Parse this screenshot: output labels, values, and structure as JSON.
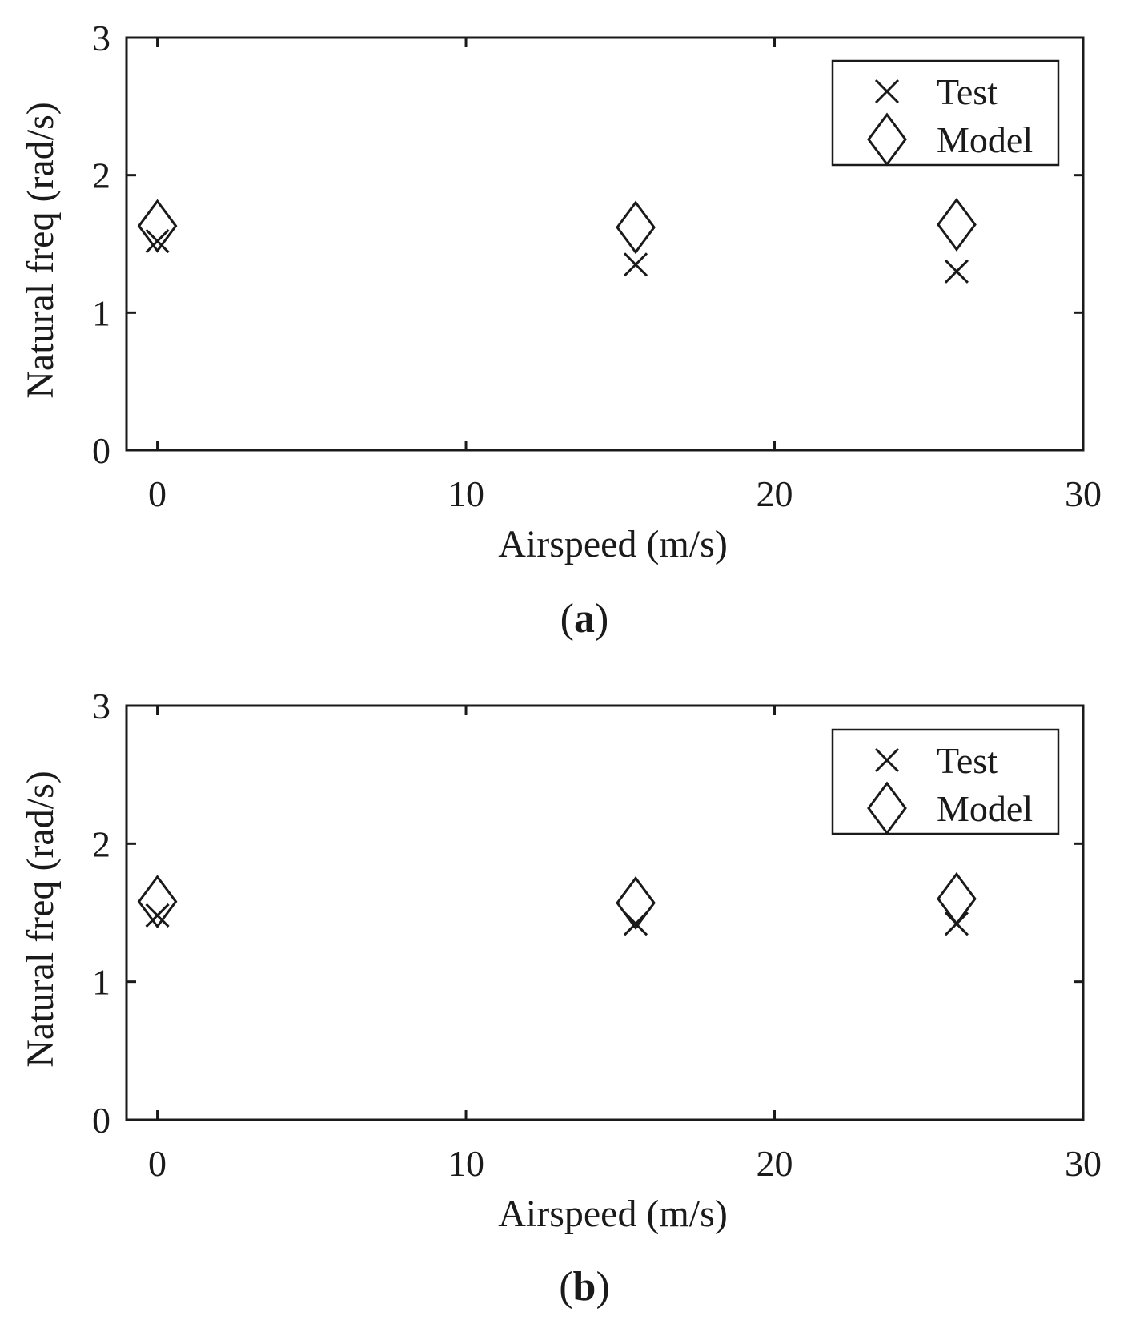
{
  "chart_data": [
    {
      "type": "scatter",
      "panel_label": "(a)",
      "panel_letter": "a",
      "xlabel": "Airspeed (m/s)",
      "ylabel": "Natural freq (rad/s)",
      "xlim": [
        -1,
        30
      ],
      "ylim": [
        0,
        3
      ],
      "xticks": [
        0,
        10,
        20,
        30
      ],
      "yticks": [
        0,
        1,
        2,
        3
      ],
      "grid": false,
      "legend_position": "top-right",
      "series": [
        {
          "name": "Test",
          "marker": "x",
          "x": [
            0,
            15.5,
            25.9
          ],
          "y": [
            1.52,
            1.35,
            1.3
          ]
        },
        {
          "name": "Model",
          "marker": "diamond",
          "x": [
            0,
            15.5,
            25.9
          ],
          "y": [
            1.63,
            1.62,
            1.64
          ]
        }
      ]
    },
    {
      "type": "scatter",
      "panel_label": "(b)",
      "panel_letter": "b",
      "xlabel": "Airspeed (m/s)",
      "ylabel": "Natural freq (rad/s)",
      "xlim": [
        -1,
        30
      ],
      "ylim": [
        0,
        3
      ],
      "xticks": [
        0,
        10,
        20,
        30
      ],
      "yticks": [
        0,
        1,
        2,
        3
      ],
      "grid": false,
      "legend_position": "top-right",
      "series": [
        {
          "name": "Test",
          "marker": "x",
          "x": [
            0,
            15.5,
            25.9
          ],
          "y": [
            1.48,
            1.42,
            1.42
          ]
        },
        {
          "name": "Model",
          "marker": "diamond",
          "x": [
            0,
            15.5,
            25.9
          ],
          "y": [
            1.58,
            1.57,
            1.6
          ]
        }
      ]
    }
  ]
}
